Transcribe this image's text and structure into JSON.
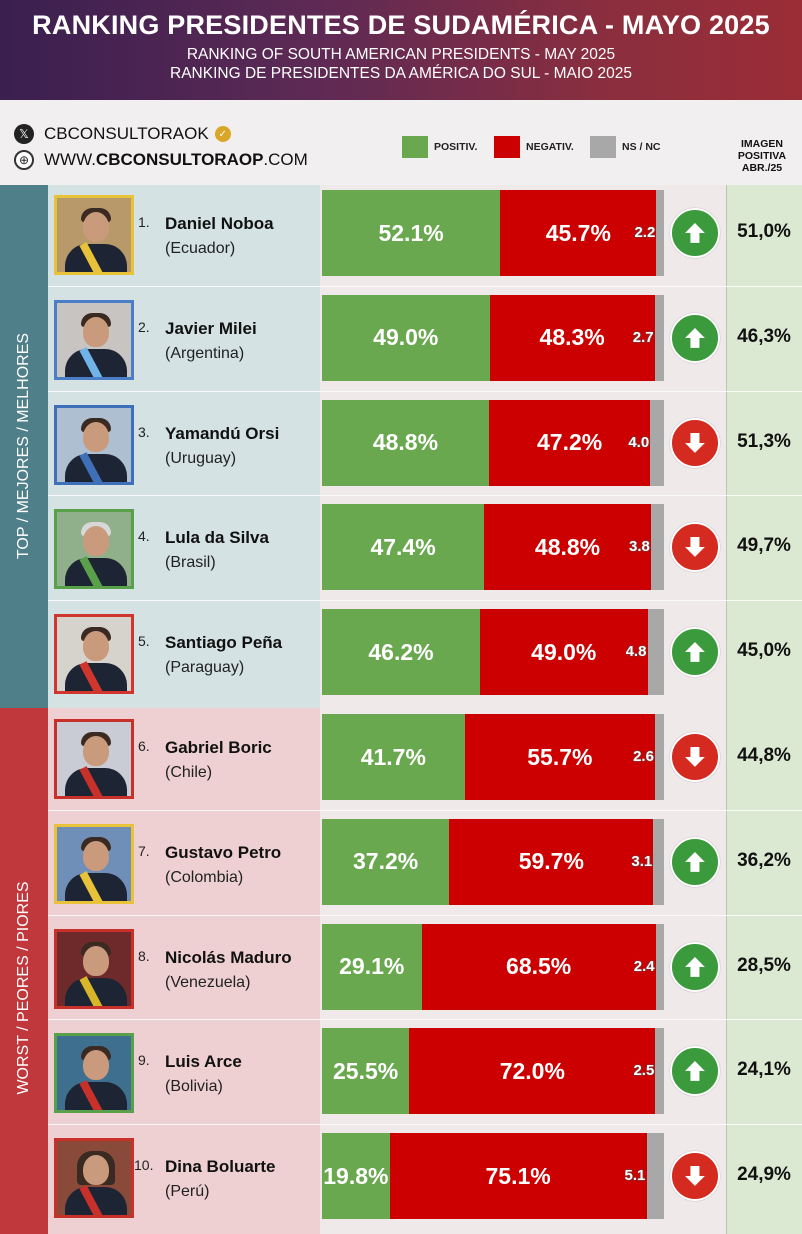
{
  "header": {
    "title": "RANKING PRESIDENTES DE SUDAMÉRICA - MAYO 2025",
    "subtitle_en": "RANKING OF SOUTH AMERICAN PRESIDENTS -  MAY 2025",
    "subtitle_pt": "RANKING DE PRESIDENTES DA AMÉRICA DO SUL - MAIO 2025"
  },
  "social": {
    "handle": "CBCONSULTORAOK",
    "website_prefix": "WWW.",
    "website_main": "CBCONSULTORAOP",
    "website_suffix": ".COM"
  },
  "legend": {
    "positive": "POSITIV.",
    "negative": "NEGATIV.",
    "nsnc": "NS / NC"
  },
  "image_column_header": [
    "IMAGEN",
    "POSITIVA",
    "ABR./25"
  ],
  "sections": {
    "top": "TOP / MEJORES / MELHORES",
    "worst": "WORST / PEORES / PIORES"
  },
  "colors": {
    "positive": "#6aa84f",
    "negative": "#cc0000",
    "nsnc": "#a8a8a8",
    "top_band": "#4f7f88",
    "worst_band": "#c0383c",
    "arrow_up": "#3b9a3b",
    "arrow_down": "#d42a20"
  },
  "chart_data": {
    "type": "bar",
    "stacked": true,
    "orientation": "horizontal",
    "categories": [
      "Daniel Noboa",
      "Javier Milei",
      "Yamandú Orsi",
      "Lula da Silva",
      "Santiago Peña",
      "Gabriel Boric",
      "Gustavo Petro",
      "Nicolás Maduro",
      "Luis Arce",
      "Dina Boluarte"
    ],
    "series": [
      {
        "name": "POSITIV.",
        "values": [
          52.1,
          49.0,
          48.8,
          47.4,
          46.2,
          41.7,
          37.2,
          29.1,
          25.5,
          19.8
        ]
      },
      {
        "name": "NEGATIV.",
        "values": [
          45.7,
          48.3,
          47.2,
          48.8,
          49.0,
          55.7,
          59.7,
          68.5,
          72.0,
          75.1
        ]
      },
      {
        "name": "NS / NC",
        "values": [
          2.2,
          2.7,
          4.0,
          3.8,
          4.8,
          2.6,
          3.1,
          2.4,
          2.5,
          5.1
        ]
      }
    ],
    "xlim": [
      0,
      100
    ],
    "rows": [
      {
        "rank": "1.",
        "name": "Daniel Noboa",
        "country": "(Ecuador)",
        "pos": 52.1,
        "neg": 45.7,
        "ns": 2.2,
        "pos_label": "52.1%",
        "neg_label": "45.7%",
        "ns_label": "2.2",
        "trend": "up",
        "prev": "51,0%",
        "frame": "#e8c33a"
      },
      {
        "rank": "2.",
        "name": "Javier Milei",
        "country": "(Argentina)",
        "pos": 49.0,
        "neg": 48.3,
        "ns": 2.7,
        "pos_label": "49.0%",
        "neg_label": "48.3%",
        "ns_label": "2.7",
        "trend": "up",
        "prev": "46,3%",
        "frame": "#4a7fc8"
      },
      {
        "rank": "3.",
        "name": "Yamandú Orsi",
        "country": "(Uruguay)",
        "pos": 48.8,
        "neg": 47.2,
        "ns": 4.0,
        "pos_label": "48.8%",
        "neg_label": "47.2%",
        "ns_label": "4.0",
        "trend": "down",
        "prev": "51,3%",
        "frame": "#3f6fb8"
      },
      {
        "rank": "4.",
        "name": "Lula da Silva",
        "country": "(Brasil)",
        "pos": 47.4,
        "neg": 48.8,
        "ns": 3.8,
        "pos_label": "47.4%",
        "neg_label": "48.8%",
        "ns_label": "3.8",
        "trend": "down",
        "prev": "49,7%",
        "frame": "#5aa04a"
      },
      {
        "rank": "5.",
        "name": "Santiago Peña",
        "country": "(Paraguay)",
        "pos": 46.2,
        "neg": 49.0,
        "ns": 4.8,
        "pos_label": "46.2%",
        "neg_label": "49.0%",
        "ns_label": "4.8",
        "trend": "up",
        "prev": "45,0%",
        "frame": "#d0362d"
      },
      {
        "rank": "6.",
        "name": "Gabriel Boric",
        "country": "(Chile)",
        "pos": 41.7,
        "neg": 55.7,
        "ns": 2.6,
        "pos_label": "41.7%",
        "neg_label": "55.7%",
        "ns_label": "2.6",
        "trend": "down",
        "prev": "44,8%",
        "frame": "#c8302a"
      },
      {
        "rank": "7.",
        "name": "Gustavo Petro",
        "country": "(Colombia)",
        "pos": 37.2,
        "neg": 59.7,
        "ns": 3.1,
        "pos_label": "37.2%",
        "neg_label": "59.7%",
        "ns_label": "3.1",
        "trend": "up",
        "prev": "36,2%",
        "frame": "#e8c33a"
      },
      {
        "rank": "8.",
        "name": "Nicolás Maduro",
        "country": "(Venezuela)",
        "pos": 29.1,
        "neg": 68.5,
        "ns": 2.4,
        "pos_label": "29.1%",
        "neg_label": "68.5%",
        "ns_label": "2.4",
        "trend": "up",
        "prev": "28,5%",
        "frame": "#c8302a"
      },
      {
        "rank": "9.",
        "name": "Luis Arce",
        "country": "(Bolivia)",
        "pos": 25.5,
        "neg": 72.0,
        "ns": 2.5,
        "pos_label": "25.5%",
        "neg_label": "72.0%",
        "ns_label": "2.5",
        "trend": "up",
        "prev": "24,1%",
        "frame": "#5aa04a"
      },
      {
        "rank": "10.",
        "name": "Dina Boluarte",
        "country": "(Perú)",
        "pos": 19.8,
        "neg": 75.1,
        "ns": 5.1,
        "pos_label": "19.8%",
        "neg_label": "75.1%",
        "ns_label": "5.1",
        "trend": "down",
        "prev": "24,9%",
        "frame": "#c8302a"
      }
    ]
  }
}
